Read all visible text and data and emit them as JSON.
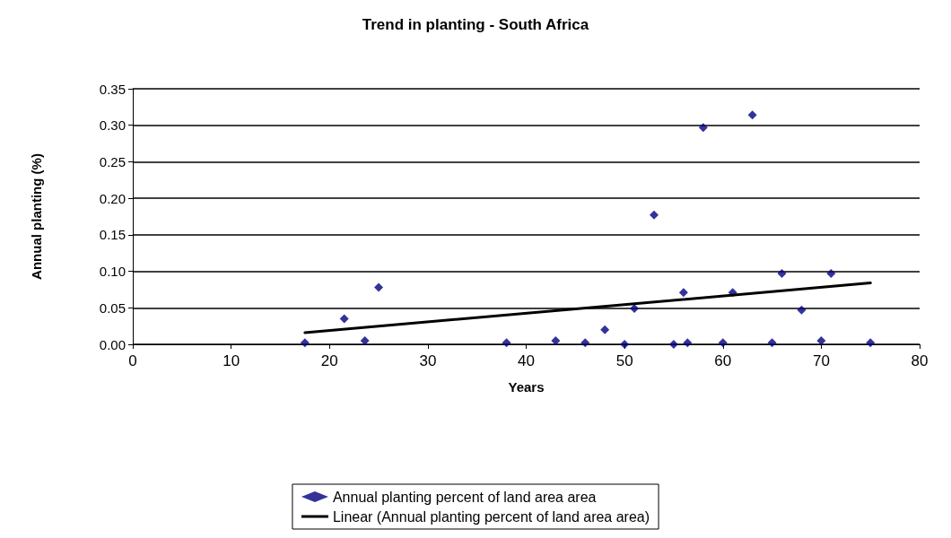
{
  "chart_data": {
    "type": "scatter",
    "title": "Trend in planting - South Africa",
    "xlabel": "Years",
    "ylabel": "Annual planting (%)",
    "xlim": [
      0,
      80
    ],
    "xticks": [
      0,
      10,
      20,
      30,
      40,
      50,
      60,
      70,
      80
    ],
    "ylim": [
      0,
      0.35
    ],
    "yticks": [
      {
        "value": 0,
        "label": "0.00"
      },
      {
        "value": 0.05,
        "label": "0.05"
      },
      {
        "value": 0.1,
        "label": "0.10"
      },
      {
        "value": 0.15,
        "label": "0.15"
      },
      {
        "value": 0.2,
        "label": "0.20"
      },
      {
        "value": 0.25,
        "label": "0.25"
      },
      {
        "value": 0.3,
        "label": "0.30"
      },
      {
        "value": 0.35,
        "label": "0.35"
      }
    ],
    "grid": "y",
    "legend": "bottom",
    "series": [
      {
        "name": "Annual planting percent of land area area",
        "marker": "diamond",
        "color": "#000080",
        "x": [
          17.5,
          21.5,
          23.6,
          25,
          38,
          43,
          46,
          48,
          50,
          51,
          53,
          55,
          56,
          56.4,
          58,
          60,
          61,
          63,
          65,
          66,
          68,
          70,
          71,
          75
        ],
        "values": [
          0.002,
          0.035,
          0.005,
          0.078,
          0.002,
          0.005,
          0.002,
          0.02,
          0,
          0.049,
          0.177,
          0,
          0.071,
          0.002,
          0.297,
          0.002,
          0.071,
          0.314,
          0.002,
          0.097,
          0.047,
          0.005,
          0.097,
          0.002
        ]
      },
      {
        "name": "Linear (Annual planting percent of land area area)",
        "type": "line",
        "marker": "none",
        "line_style": "solid",
        "color": "#000000",
        "x": [
          17.5,
          75
        ],
        "values": [
          0.016,
          0.084
        ]
      }
    ]
  }
}
